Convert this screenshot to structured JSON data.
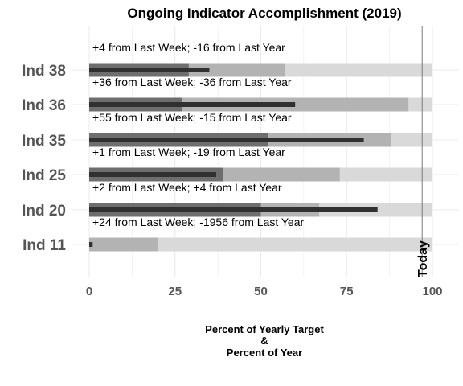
{
  "chart_data": {
    "type": "bar",
    "title": "Ongoing Indicator Accomplishment (2019)",
    "xlabel_lines": [
      "Percent of Yearly Target",
      "&",
      "Percent of Year"
    ],
    "xlim": [
      0,
      100
    ],
    "xticks": [
      "0",
      "25",
      "50",
      "75",
      "100"
    ],
    "xtick_values": [
      0,
      25,
      50,
      75,
      100
    ],
    "today_label": "Today",
    "today_value": 97,
    "categories": [
      "Ind 38",
      "Ind 36",
      "Ind 35",
      "Ind 25",
      "Ind 20",
      "Ind 11"
    ],
    "annotations": [
      "+4 from Last Week; -16 from Last Year",
      "+36 from Last Week; -36 from Last Year",
      "+55 from Last Week; -15 from Last Year",
      "+1 from Last Week; -19 from Last Year",
      "+2 from Last Week; +4 from Last Year",
      "+24 from Last Week; -1956 from Last Year"
    ],
    "ranges": {
      "background": [
        100,
        100,
        100,
        100,
        100,
        100
      ],
      "mid": [
        57,
        93,
        88,
        73,
        67,
        20
      ],
      "inner": [
        29,
        27,
        52,
        39,
        50,
        0
      ]
    },
    "values": [
      35,
      60,
      80,
      37,
      84,
      1
    ],
    "colors": {
      "background": "#d9d9d9",
      "mid": "#b3b3b3",
      "inner": "#6e6e6e",
      "value": "#303030",
      "grid": "#ebebeb",
      "today": "#7a7a7a"
    }
  }
}
